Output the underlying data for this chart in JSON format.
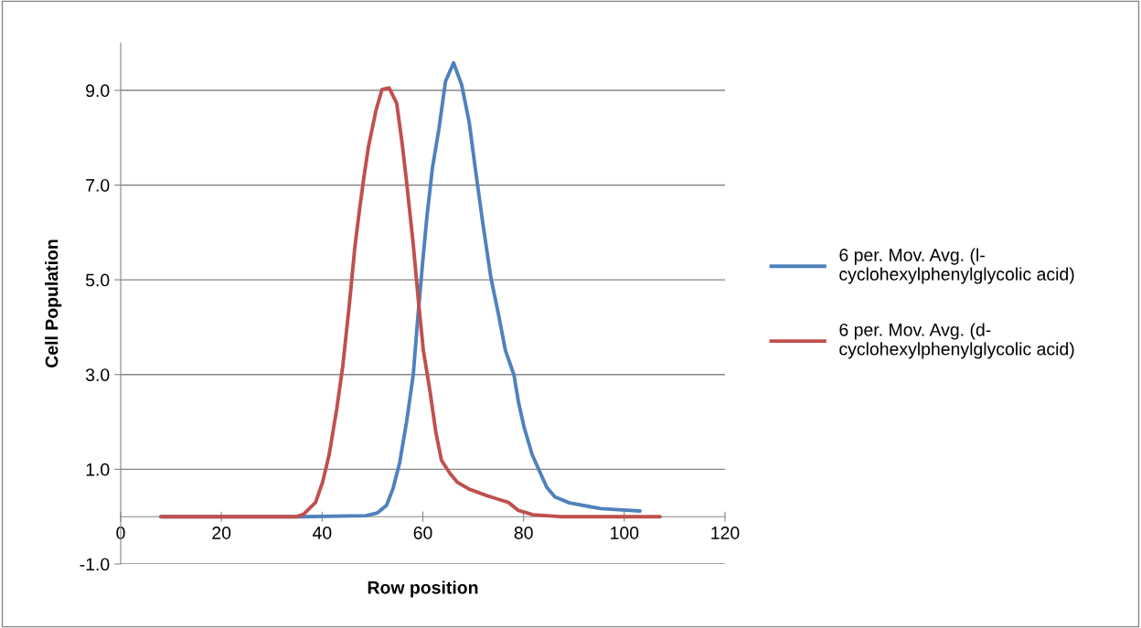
{
  "chart_data": {
    "type": "line",
    "xlabel": "Row position",
    "ylabel": "Cell Population",
    "xlim": [
      0,
      120
    ],
    "xticks": [
      0,
      20,
      40,
      60,
      80,
      100,
      120
    ],
    "ylim": [
      -1,
      10
    ],
    "yticks": [
      {
        "value": -1,
        "label": "-1.0"
      },
      {
        "value": 1,
        "label": "1.0"
      },
      {
        "value": 3,
        "label": "3.0"
      },
      {
        "value": 5,
        "label": "5.0"
      },
      {
        "value": 7,
        "label": "7.0"
      },
      {
        "value": 9,
        "label": "9.0"
      }
    ],
    "grid": "y",
    "legend": "right",
    "marker": "none",
    "line_style": "solid",
    "series": [
      {
        "name": "6 per. Mov. Avg. (l-\ncyclohexylphenylglycolic acid)",
        "color": "#4f81bd",
        "x": [
          8,
          36,
          48.7,
          51.0,
          52.8,
          54.1,
          55.4,
          56.8,
          58.1,
          59.0,
          59.9,
          60.8,
          61.9,
          63.2,
          64.5,
          66.1,
          67.7,
          69.2,
          70.4,
          71.9,
          73.5,
          75.0,
          76.4,
          78.1,
          79.0,
          80.1,
          81.7,
          84.6,
          86.2,
          89.1,
          92.2,
          95.3,
          98.2,
          103.1
        ],
        "values": [
          0,
          0,
          0.02,
          0.08,
          0.24,
          0.6,
          1.14,
          2.02,
          3.0,
          4.2,
          5.3,
          6.32,
          7.36,
          8.19,
          9.19,
          9.58,
          9.12,
          8.33,
          7.36,
          6.2,
          5.05,
          4.28,
          3.51,
          2.99,
          2.41,
          1.89,
          1.31,
          0.62,
          0.42,
          0.29,
          0.23,
          0.17,
          0.15,
          0.12
        ]
      },
      {
        "name": "6 per. Mov. Avg. (d-\ncyclohexylphenylglycolic acid)",
        "color": "#c0504d",
        "x": [
          8,
          35,
          36.3,
          38.7,
          40.1,
          41.4,
          42.9,
          44.1,
          45.4,
          46.5,
          47.4,
          48.3,
          49.2,
          50.7,
          51.9,
          53.3,
          54.8,
          55.9,
          56.8,
          58.1,
          59.2,
          60.1,
          61.4,
          62.6,
          63.7,
          65.4,
          66.8,
          69.2,
          72.8,
          74.6,
          77.0,
          79.0,
          81.9,
          87.3,
          107.1
        ],
        "values": [
          0,
          0,
          0.05,
          0.3,
          0.73,
          1.31,
          2.27,
          3.18,
          4.47,
          5.69,
          6.46,
          7.17,
          7.81,
          8.58,
          9.02,
          9.05,
          8.73,
          7.87,
          7.04,
          5.74,
          4.47,
          3.51,
          2.66,
          1.77,
          1.19,
          0.91,
          0.73,
          0.58,
          0.44,
          0.38,
          0.3,
          0.13,
          0.04,
          0,
          0
        ]
      }
    ]
  }
}
